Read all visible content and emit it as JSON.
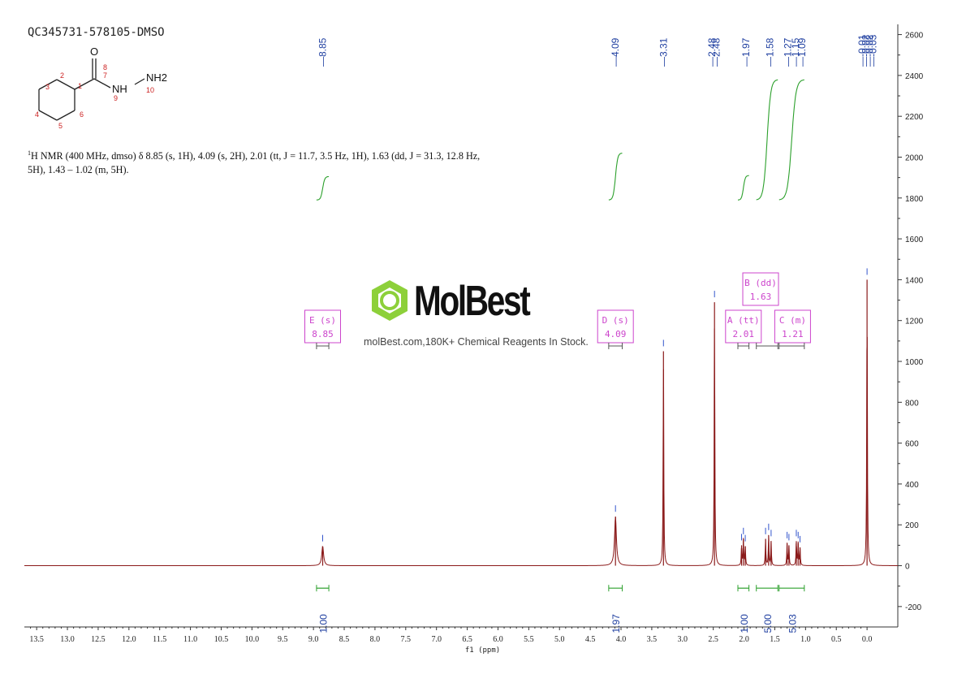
{
  "sample_id": "QC345731-578105-DMSO",
  "description": {
    "sup": "1",
    "text": "H NMR (400 MHz, dmso) δ 8.85 (s, 1H), 4.09 (s, 2H), 2.01 (tt, J = 11.7, 3.5 Hz, 1H), 1.63 (dd, J = 31.3, 12.8 Hz, 5H), 1.43 – 1.02 (m, 5H)."
  },
  "structure": {
    "atom_labels": [
      "1",
      "2",
      "3",
      "4",
      "5",
      "6",
      "7",
      "8",
      "9",
      "10"
    ],
    "atoms": [
      "O",
      "NH",
      "NH2"
    ]
  },
  "watermark": {
    "brand": "MolBest",
    "tagline": "molBest.com,180K+ Chemical Reagents In Stock."
  },
  "colors": {
    "spectrum": "#8b1a1a",
    "integral": "#2ca02c",
    "label": "#1f3fa0",
    "multiplet": "#cc44cc",
    "logo": "#7dc832"
  },
  "chart_data": {
    "type": "line",
    "xlabel": "f1 (ppm)",
    "xlim": [
      13.7,
      -0.5
    ],
    "ylim": [
      -300,
      2650
    ],
    "x_ticks": [
      "13.5",
      "13.0",
      "12.5",
      "12.0",
      "11.5",
      "11.0",
      "10.5",
      "10.0",
      "9.5",
      "9.0",
      "8.5",
      "8.0",
      "7.5",
      "7.0",
      "6.5",
      "6.0",
      "5.5",
      "5.0",
      "4.5",
      "4.0",
      "3.5",
      "3.0",
      "2.5",
      "2.0",
      "1.5",
      "1.0",
      "0.5",
      "0.0"
    ],
    "y_ticks": [
      "2600",
      "2400",
      "2200",
      "2000",
      "1800",
      "1600",
      "1400",
      "1200",
      "1000",
      "800",
      "600",
      "400",
      "200",
      "0",
      "-200"
    ],
    "peaks": [
      {
        "ppm": 8.85,
        "height": 95
      },
      {
        "ppm": 4.09,
        "height": 240
      },
      {
        "ppm": 3.31,
        "height": 1050
      },
      {
        "ppm": 2.48,
        "height": 1290
      },
      {
        "ppm": 2.04,
        "height": 100
      },
      {
        "ppm": 2.01,
        "height": 130
      },
      {
        "ppm": 1.98,
        "height": 95
      },
      {
        "ppm": 1.65,
        "height": 130
      },
      {
        "ppm": 1.6,
        "height": 150
      },
      {
        "ppm": 1.56,
        "height": 120
      },
      {
        "ppm": 1.3,
        "height": 110
      },
      {
        "ppm": 1.27,
        "height": 100
      },
      {
        "ppm": 1.15,
        "height": 120
      },
      {
        "ppm": 1.12,
        "height": 110
      },
      {
        "ppm": 1.09,
        "height": 90
      },
      {
        "ppm": 0.0,
        "height": 1400
      }
    ],
    "peak_labels": [
      "8.85",
      "4.09",
      "3.31",
      "2.48",
      "2.48",
      "1.97",
      "1.58",
      "1.27",
      "1.15",
      "1.09",
      "-0.01",
      "-0.02",
      "-0.02",
      "-0.03"
    ],
    "integrals": [
      {
        "from": 8.95,
        "to": 8.75,
        "value": "1.00"
      },
      {
        "from": 4.2,
        "to": 3.98,
        "value": "1.97"
      },
      {
        "from": 2.1,
        "to": 1.92,
        "value": "1.00"
      },
      {
        "from": 1.8,
        "to": 1.45,
        "value": "5.00"
      },
      {
        "from": 1.43,
        "to": 1.02,
        "value": "5.03"
      }
    ],
    "multiplets": [
      {
        "letter": "E",
        "mult": "(s)",
        "shift": "8.85",
        "from": 8.95,
        "to": 8.75
      },
      {
        "letter": "D",
        "mult": "(s)",
        "shift": "4.09",
        "from": 4.2,
        "to": 3.98
      },
      {
        "letter": "A",
        "mult": "(tt)",
        "shift": "2.01",
        "from": 2.1,
        "to": 1.92
      },
      {
        "letter": "B",
        "mult": "(dd)",
        "shift": "1.63",
        "from": 1.8,
        "to": 1.45
      },
      {
        "letter": "C",
        "mult": "(m)",
        "shift": "1.21",
        "from": 1.43,
        "to": 1.02
      }
    ]
  }
}
